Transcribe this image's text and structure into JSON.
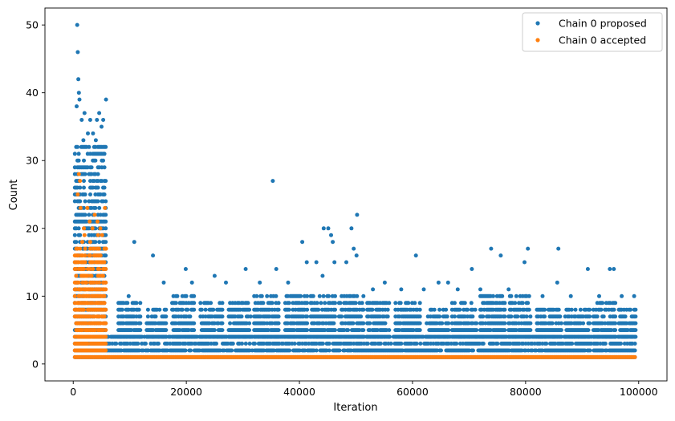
{
  "chart_data": {
    "type": "scatter",
    "title": "",
    "xlabel": "Iteration",
    "ylabel": "Count",
    "xlim": [
      -5000,
      105000
    ],
    "ylim": [
      -2.5,
      52.5
    ],
    "xticks": [
      0,
      20000,
      40000,
      60000,
      80000,
      100000
    ],
    "xtick_labels": [
      "0",
      "20000",
      "40000",
      "60000",
      "80000",
      "100000"
    ],
    "yticks": [
      0,
      10,
      20,
      30,
      40,
      50
    ],
    "ytick_labels": [
      "0",
      "10",
      "20",
      "30",
      "40",
      "50"
    ],
    "grid": false,
    "legend_position": "top-right",
    "series": [
      {
        "name": "Chain 0 proposed",
        "color": "#1f77b4",
        "marker": "circle",
        "points": [
          [
            700,
            50
          ],
          [
            800,
            46
          ],
          [
            900,
            42
          ],
          [
            1000,
            40
          ],
          [
            1100,
            39
          ],
          [
            600,
            38
          ],
          [
            2000,
            37
          ],
          [
            4600,
            37
          ],
          [
            5800,
            39
          ],
          [
            1500,
            36
          ],
          [
            3000,
            36
          ],
          [
            4200,
            36
          ],
          [
            5300,
            36
          ],
          [
            2600,
            34
          ],
          [
            3500,
            34
          ],
          [
            5000,
            35
          ],
          [
            1800,
            33
          ],
          [
            4000,
            33
          ],
          [
            35300,
            27
          ],
          [
            10800,
            18
          ],
          [
            14100,
            16
          ],
          [
            40500,
            18
          ],
          [
            44300,
            20
          ],
          [
            45100,
            20
          ],
          [
            45600,
            19
          ],
          [
            45900,
            18
          ],
          [
            49200,
            20
          ],
          [
            50200,
            22
          ],
          [
            49600,
            17
          ],
          [
            50100,
            16
          ],
          [
            48300,
            15
          ],
          [
            44100,
            13
          ],
          [
            60600,
            16
          ],
          [
            70500,
            14
          ],
          [
            73900,
            17
          ],
          [
            75600,
            16
          ],
          [
            79800,
            15
          ],
          [
            80400,
            17
          ],
          [
            85800,
            17
          ],
          [
            91000,
            14
          ],
          [
            94900,
            14
          ],
          [
            95600,
            14
          ],
          [
            99200,
            10
          ],
          [
            19900,
            14
          ],
          [
            25000,
            13
          ],
          [
            30500,
            14
          ],
          [
            35900,
            14
          ],
          [
            41300,
            15
          ],
          [
            46200,
            15
          ],
          [
            55100,
            12
          ],
          [
            64600,
            12
          ],
          [
            66300,
            12
          ],
          [
            85600,
            12
          ],
          [
            9800,
            10
          ],
          [
            16000,
            12
          ],
          [
            21000,
            12
          ],
          [
            27000,
            12
          ],
          [
            33000,
            12
          ],
          [
            38000,
            12
          ],
          [
            43000,
            15
          ],
          [
            53000,
            11
          ],
          [
            58000,
            11
          ],
          [
            62000,
            11
          ],
          [
            68000,
            11
          ],
          [
            72000,
            11
          ],
          [
            77000,
            11
          ],
          [
            83000,
            10
          ],
          [
            88000,
            10
          ],
          [
            93000,
            10
          ],
          [
            97000,
            10
          ]
        ],
        "clusters": [
          {
            "x": [
              300,
              5900
            ],
            "y": [
              1,
              32
            ]
          },
          {
            "x": [
              6000,
              99500
            ],
            "y": [
              1,
              4
            ]
          },
          {
            "x": [
              8000,
              12000
            ],
            "y": [
              4,
              9
            ]
          },
          {
            "x": [
              13000,
              16500
            ],
            "y": [
              4,
              8
            ]
          },
          {
            "x": [
              17500,
              21500
            ],
            "y": [
              4,
              10
            ]
          },
          {
            "x": [
              22500,
              26500
            ],
            "y": [
              4,
              9
            ]
          },
          {
            "x": [
              27500,
              31500
            ],
            "y": [
              4,
              9
            ]
          },
          {
            "x": [
              32000,
              36500
            ],
            "y": [
              4,
              10
            ]
          },
          {
            "x": [
              37500,
              41500
            ],
            "y": [
              4,
              10
            ]
          },
          {
            "x": [
              42000,
              46500
            ],
            "y": [
              4,
              10
            ]
          },
          {
            "x": [
              47000,
              51500
            ],
            "y": [
              4,
              10
            ]
          },
          {
            "x": [
              52000,
              56000
            ],
            "y": [
              4,
              9
            ]
          },
          {
            "x": [
              57000,
              61500
            ],
            "y": [
              4,
              9
            ]
          },
          {
            "x": [
              62500,
              66500
            ],
            "y": [
              4,
              8
            ]
          },
          {
            "x": [
              67000,
              71500
            ],
            "y": [
              4,
              9
            ]
          },
          {
            "x": [
              72000,
              76500
            ],
            "y": [
              4,
              10
            ]
          },
          {
            "x": [
              77000,
              81000
            ],
            "y": [
              4,
              10
            ]
          },
          {
            "x": [
              82000,
              86500
            ],
            "y": [
              4,
              8
            ]
          },
          {
            "x": [
              87000,
              91500
            ],
            "y": [
              4,
              8
            ]
          },
          {
            "x": [
              92000,
              96000
            ],
            "y": [
              4,
              9
            ]
          },
          {
            "x": [
              96500,
              99500
            ],
            "y": [
              4,
              8
            ]
          }
        ]
      },
      {
        "name": "Chain 0 accepted",
        "color": "#ff7f0e",
        "marker": "circle",
        "points": [
          [
            1000,
            28
          ],
          [
            1200,
            27
          ],
          [
            800,
            25
          ],
          [
            1300,
            23
          ],
          [
            2500,
            23
          ],
          [
            3800,
            22
          ],
          [
            4300,
            21
          ],
          [
            5600,
            23
          ],
          [
            4800,
            20
          ],
          [
            2900,
            21
          ],
          [
            3400,
            20
          ],
          [
            2000,
            19
          ],
          [
            5100,
            19
          ],
          [
            1600,
            18
          ],
          [
            3000,
            18
          ],
          [
            4400,
            19
          ],
          [
            1900,
            20
          ],
          [
            5800,
            17
          ]
        ],
        "clusters": [
          {
            "x": [
              300,
              5900
            ],
            "y": [
              1,
              17
            ]
          },
          {
            "x": [
              6000,
              99500
            ],
            "y": [
              1,
              1
            ]
          }
        ]
      }
    ]
  }
}
